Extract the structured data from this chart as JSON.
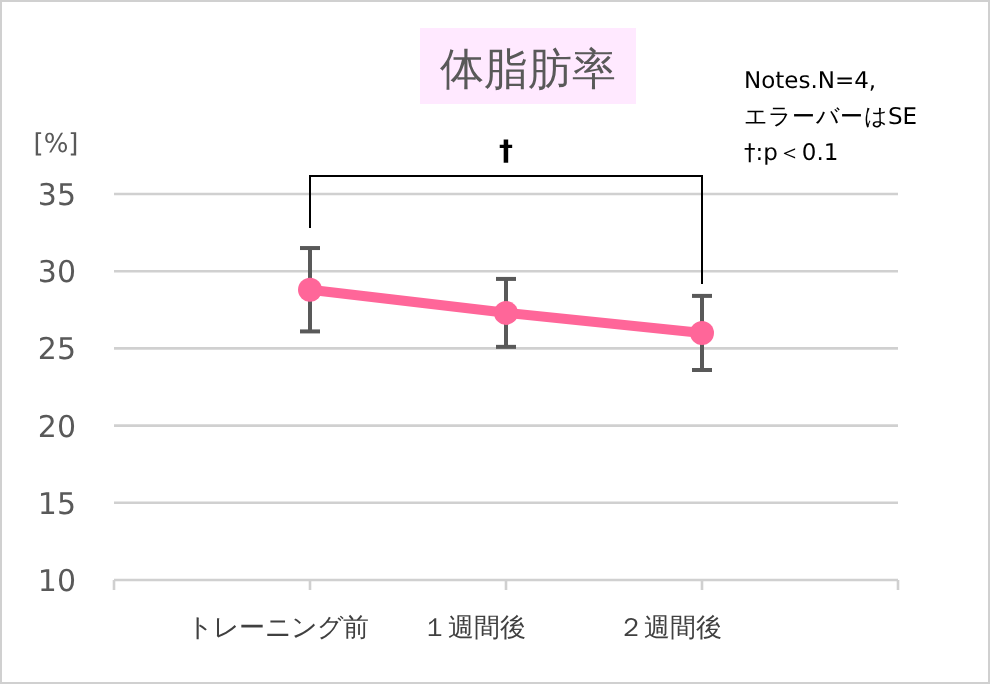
{
  "chart_data": {
    "type": "line",
    "title": "体脂肪率",
    "ylabel": "[%]",
    "categories": [
      "トレーニング前",
      "１週間後",
      "２週間後"
    ],
    "series": [
      {
        "color": "#ff6699",
        "values": [
          28.8,
          27.3,
          26.0
        ],
        "errors": [
          2.7,
          2.2,
          2.4
        ]
      }
    ],
    "ylim": [
      10,
      35
    ],
    "yticks": [
      10,
      15,
      20,
      25,
      30,
      35
    ],
    "grid": "y",
    "marker": "circle",
    "line_style": "solid",
    "annotations": [
      "†",
      "Notes.N=4,",
      "エラーバーはSE",
      "†:p＜0.1"
    ]
  }
}
